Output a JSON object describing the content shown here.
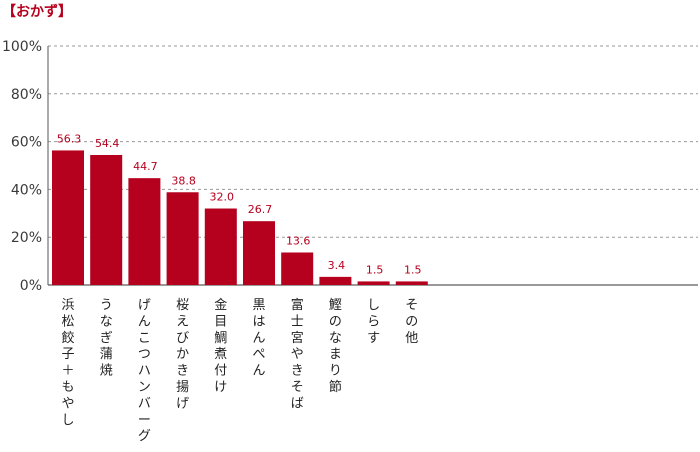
{
  "chart_data": {
    "type": "bar",
    "title": "【おかず】",
    "xlabel": "",
    "ylabel": "",
    "ylim": [
      0,
      100
    ],
    "y_ticks": [
      "0%",
      "20%",
      "40%",
      "60%",
      "80%",
      "100%"
    ],
    "y_tick_values": [
      0,
      20,
      40,
      60,
      80,
      100
    ],
    "grid": true,
    "bar_color": "#b5001e",
    "categories": [
      "浜松餃子＋もやし",
      "うなぎ蒲焼",
      "げんこつハンバーグ",
      "桜えびかき揚げ",
      "金目鯛煮付け",
      "黒はんぺん",
      "富士宮やきそば",
      "鰹のなまり節",
      "しらす",
      "その他"
    ],
    "values": [
      56.3,
      54.4,
      44.7,
      38.8,
      32.0,
      26.7,
      13.6,
      3.4,
      1.5,
      1.5
    ],
    "data_labels": [
      "56.3",
      "54.4",
      "44.7",
      "38.8",
      "32.0",
      "26.7",
      "13.6",
      "3.4",
      "1.5",
      "1.5"
    ]
  }
}
